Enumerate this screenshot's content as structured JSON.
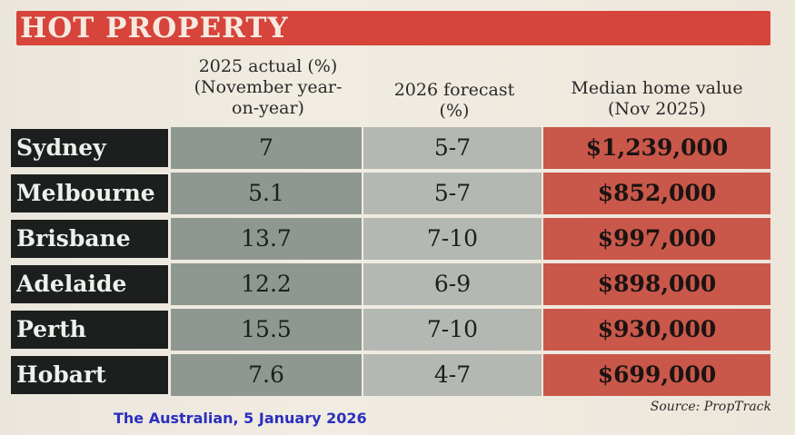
{
  "banner": {
    "title": "HOT PROPERTY"
  },
  "headers": {
    "col1": [
      "2025 actual (%)",
      "(November year-",
      "on-year)"
    ],
    "col2": [
      "2026 forecast",
      "(%)"
    ],
    "col3": [
      "Median home value",
      "(Nov 2025)"
    ]
  },
  "rows": [
    {
      "city": "Sydney",
      "actual_2025": "7",
      "forecast_2026": "5-7",
      "median_value": "$1,239,000"
    },
    {
      "city": "Melbourne",
      "actual_2025": "5.1",
      "forecast_2026": "5-7",
      "median_value": "$852,000"
    },
    {
      "city": "Brisbane",
      "actual_2025": "13.7",
      "forecast_2026": "7-10",
      "median_value": "$997,000"
    },
    {
      "city": "Adelaide",
      "actual_2025": "12.2",
      "forecast_2026": "6-9",
      "median_value": "$898,000"
    },
    {
      "city": "Perth",
      "actual_2025": "15.5",
      "forecast_2026": "7-10",
      "median_value": "$930,000"
    },
    {
      "city": "Hobart",
      "actual_2025": "7.6",
      "forecast_2026": "4-7",
      "median_value": "$699,000"
    }
  ],
  "source": "Source: PropTrack",
  "caption": "The Australian, 5 January 2026",
  "colors": {
    "banner": "#d6443b",
    "city_bg": "#1c1f1e",
    "actual_bg": "#8f9791",
    "forecast_bg": "#b4b8b2",
    "value_bg": "#c9584a",
    "caption": "#2b2fbf"
  }
}
